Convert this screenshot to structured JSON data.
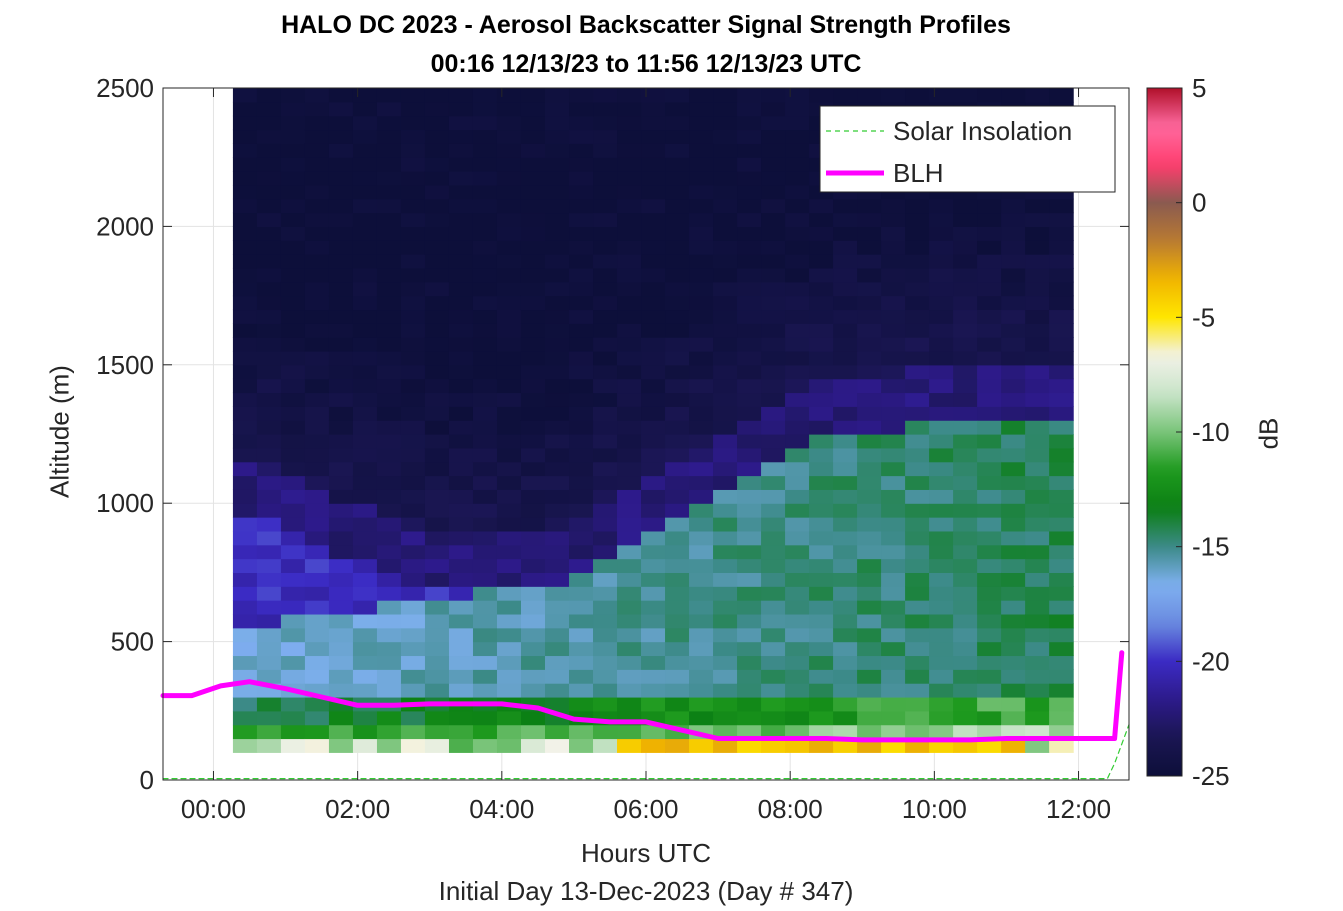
{
  "chart_data": {
    "type": "heatmap",
    "title": "HALO DC 2023 - Aerosol Backscatter Signal Strength Profiles",
    "subtitle": "00:16 12/13/23 to 11:56 12/13/23  UTC",
    "xlabel": "Hours UTC",
    "xlabel2": "Initial Day 13-Dec-2023 (Day # 347)",
    "ylabel": "Altitude (m)",
    "colorbar_label": "dB",
    "xlim": [
      -0.7,
      12.7
    ],
    "ylim": [
      0,
      2500
    ],
    "clim": [
      -25,
      5
    ],
    "x_ticks": [
      0,
      2,
      4,
      6,
      8,
      10,
      12
    ],
    "x_tick_labels": [
      "00:00",
      "02:00",
      "04:00",
      "06:00",
      "08:00",
      "10:00",
      "12:00"
    ],
    "y_ticks": [
      0,
      500,
      1000,
      1500,
      2000,
      2500
    ],
    "y_tick_labels": [
      "0",
      "500",
      "1000",
      "1500",
      "2000",
      "2500"
    ],
    "colorbar_ticks": [
      5,
      0,
      -5,
      -10,
      -15,
      -20,
      -25
    ],
    "colorbar_tick_labels": [
      "5",
      "0",
      "-5",
      "-10",
      "-15",
      "-20",
      "-25"
    ],
    "grid": true,
    "legend_position": "top-right",
    "heatmap": {
      "x_start_hours": 0.27,
      "bin_width_hours": 0.333,
      "n_bins": 35,
      "y_bottom_m": 100,
      "gate_m": 50,
      "n_gates": 48,
      "blh_profile_m": [
        320,
        320,
        340,
        360,
        370,
        370,
        380,
        390,
        400,
        420,
        450,
        480,
        520,
        560,
        600,
        640,
        680,
        720,
        760,
        800,
        860,
        920,
        980,
        1050,
        1100,
        1140,
        1180,
        1210,
        1230,
        1250,
        1260,
        1270,
        1280,
        1285,
        1290
      ],
      "aerosol_layer_top_m": [
        950,
        950,
        880,
        860,
        800,
        780,
        740,
        720,
        700,
        690,
        680,
        680,
        700,
        720,
        760,
        800,
        860,
        900,
        960,
        1000,
        1050,
        1100,
        1150,
        1200,
        1230,
        1250,
        1260,
        1270,
        1280,
        1285,
        1290,
        1290,
        1290,
        1290,
        1290
      ]
    },
    "series": [
      {
        "name": "Solar Insolation",
        "style": "dashed",
        "color": "#33cc33",
        "x": [
          -0.7,
          12.4,
          12.5,
          12.6,
          12.7
        ],
        "y": [
          5,
          5,
          60,
          130,
          200
        ]
      },
      {
        "name": "BLH",
        "style": "solid",
        "color": "#ff00ff",
        "x": [
          -0.7,
          -0.3,
          0.1,
          0.5,
          1.0,
          1.5,
          2.0,
          2.5,
          3.0,
          3.5,
          4.0,
          4.5,
          5.0,
          5.5,
          6.0,
          6.5,
          7.0,
          7.5,
          8.0,
          8.5,
          9.0,
          9.5,
          10.0,
          10.5,
          11.0,
          11.5,
          12.0,
          12.3,
          12.5,
          12.6
        ],
        "y": [
          305,
          305,
          340,
          355,
          330,
          300,
          270,
          270,
          275,
          275,
          275,
          260,
          220,
          210,
          210,
          180,
          150,
          150,
          150,
          150,
          145,
          145,
          145,
          145,
          150,
          150,
          150,
          150,
          150,
          460
        ]
      }
    ]
  },
  "colors": {
    "colormap": [
      "#0d0f3a",
      "#1a1652",
      "#2d1a8a",
      "#3b2bc4",
      "#6a8be0",
      "#7fb0f0",
      "#3c8a88",
      "#0b7f14",
      "#1e9a1e",
      "#79c479",
      "#c9e4c9",
      "#f2f2e8",
      "#ffe600",
      "#f0b400",
      "#b97a32",
      "#8a5a50",
      "#ff3d6e",
      "#ff6aa0",
      "#b0102a"
    ]
  }
}
